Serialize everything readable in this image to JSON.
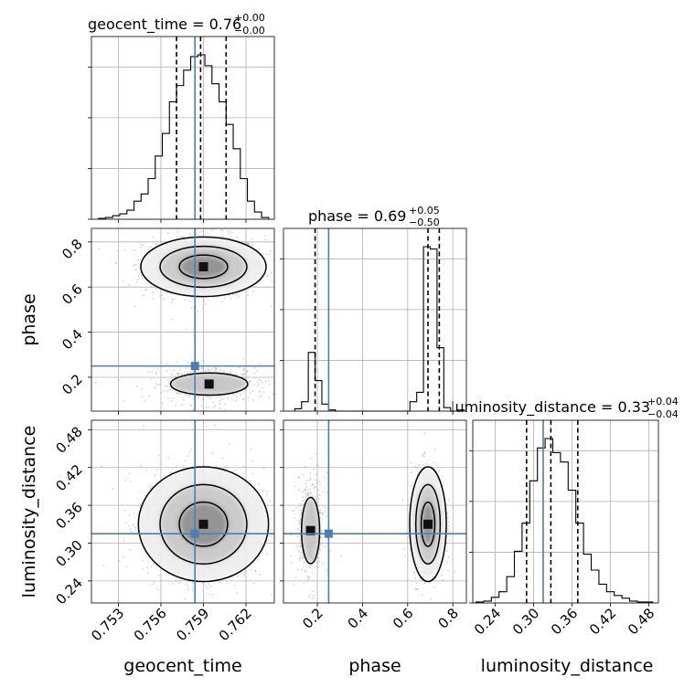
{
  "chart_data": {
    "type": "corner",
    "parameters": [
      "geocent_time",
      "phase",
      "luminosity_distance"
    ],
    "axis_labels": {
      "x": [
        "geocent_time",
        "phase",
        "luminosity_distance"
      ],
      "y": [
        "phase",
        "luminosity_distance"
      ]
    },
    "ranges": {
      "geocent_time": [
        0.7511,
        0.764
      ],
      "phase": [
        0.05,
        0.86
      ],
      "luminosity_distance": [
        0.205,
        0.495
      ]
    },
    "ticks": {
      "geocent_time": [
        "0.753",
        "0.756",
        "0.759",
        "0.762"
      ],
      "phase_x": [
        "0.2",
        "0.4",
        "0.6",
        "0.8"
      ],
      "phase_y": [
        "0.2",
        "0.4",
        "0.6",
        "0.8"
      ],
      "luminosity_distance_x": [
        "0.24",
        "0.30",
        "0.36",
        "0.42",
        "0.48"
      ],
      "luminosity_distance_y": [
        "0.24",
        "0.30",
        "0.36",
        "0.42",
        "0.48"
      ]
    },
    "truths": {
      "geocent_time": 0.7584,
      "phase": 0.25,
      "luminosity_distance": 0.315
    },
    "titles": [
      {
        "parameter": "geocent_time",
        "main": "geocent_time = 0.76",
        "plus": "+0.00",
        "minus": "−0.00"
      },
      {
        "parameter": "phase",
        "main": "phase = 0.69",
        "plus": "+0.05",
        "minus": "−0.50"
      },
      {
        "parameter": "luminosity_distance",
        "main": "luminosity_distance = 0.33",
        "plus": "+0.04",
        "minus": "−0.04"
      }
    ],
    "quantiles": {
      "geocent_time": [
        0.7571,
        0.7588,
        0.7606
      ],
      "phase": [
        0.19,
        0.69,
        0.74
      ],
      "luminosity_distance": [
        0.289,
        0.327,
        0.369
      ]
    },
    "histograms": {
      "geocent_time": {
        "bin_edges": [
          0.7516,
          0.7521,
          0.7526,
          0.7531,
          0.7536,
          0.7541,
          0.7546,
          0.7551,
          0.7556,
          0.7561,
          0.7566,
          0.7571,
          0.7576,
          0.7581,
          0.7586,
          0.7591,
          0.7596,
          0.7601,
          0.7606,
          0.7611,
          0.7616,
          0.7621,
          0.7626,
          0.7631,
          0.7636
        ],
        "counts": [
          1,
          2,
          4,
          6,
          10,
          20,
          28,
          45,
          70,
          95,
          130,
          148,
          165,
          180,
          182,
          170,
          150,
          130,
          105,
          78,
          45,
          20,
          8,
          2
        ]
      },
      "phase": {
        "bin_edges": [
          0.1,
          0.13,
          0.16,
          0.19,
          0.22,
          0.25,
          0.28,
          0.31,
          0.34,
          0.37,
          0.4,
          0.43,
          0.46,
          0.49,
          0.52,
          0.55,
          0.58,
          0.61,
          0.64,
          0.67,
          0.7,
          0.73,
          0.76,
          0.79,
          0.82,
          0.85
        ],
        "counts": [
          2,
          8,
          50,
          26,
          6,
          1,
          0,
          0,
          0,
          0,
          0,
          0,
          0,
          0,
          0,
          0,
          0,
          8,
          16,
          140,
          138,
          54,
          3,
          0,
          1
        ]
      },
      "luminosity_distance": {
        "bin_edges": [
          0.21,
          0.222,
          0.234,
          0.246,
          0.258,
          0.27,
          0.282,
          0.294,
          0.306,
          0.318,
          0.33,
          0.342,
          0.354,
          0.366,
          0.378,
          0.39,
          0.402,
          0.414,
          0.426,
          0.438,
          0.45,
          0.462,
          0.474,
          0.486
        ],
        "counts": [
          1,
          2,
          6,
          12,
          28,
          55,
          85,
          130,
          165,
          175,
          160,
          150,
          120,
          85,
          52,
          35,
          20,
          12,
          8,
          5,
          2,
          1,
          1
        ]
      }
    },
    "density_centers": [
      {
        "x_param": "geocent_time",
        "y_param": "phase",
        "modes": [
          {
            "x": 0.759,
            "y": 0.69
          },
          {
            "x": 0.7594,
            "y": 0.17
          }
        ]
      },
      {
        "x_param": "geocent_time",
        "y_param": "luminosity_distance",
        "modes": [
          {
            "x": 0.759,
            "y": 0.33
          }
        ]
      },
      {
        "x_param": "phase",
        "y_param": "luminosity_distance",
        "modes": [
          {
            "x": 0.69,
            "y": 0.33
          },
          {
            "x": 0.17,
            "y": 0.32
          }
        ]
      }
    ],
    "colors": {
      "truth": "#4a7fb5",
      "line": "#000000",
      "grid": "#b0b0b0"
    }
  }
}
